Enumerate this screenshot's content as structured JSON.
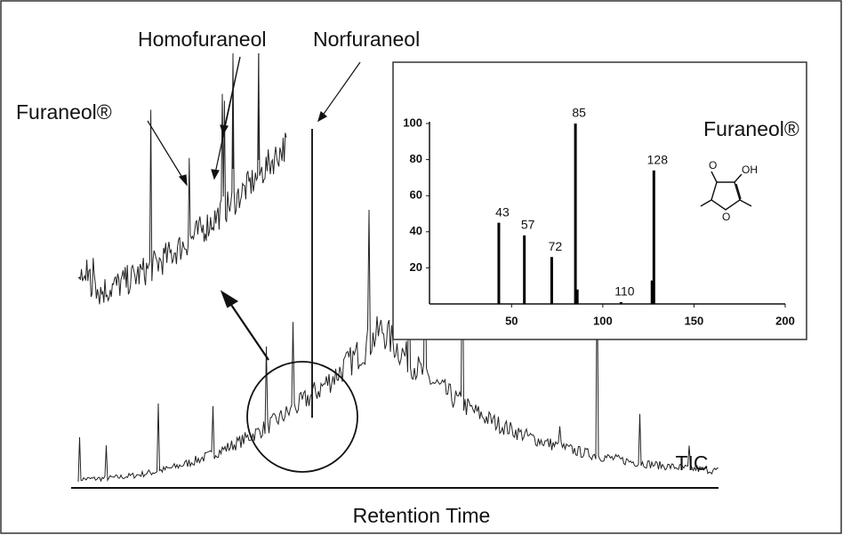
{
  "figure": {
    "labels": {
      "homofuraneol": "Homofuraneol",
      "norfuraneol": "Norfuraneol",
      "furaneol": "Furaneol®",
      "tic": "TIC",
      "x_axis": "Retention Time"
    },
    "structure_labels": [
      "O",
      "OH",
      "O"
    ]
  },
  "chart_data": {
    "type": "bar",
    "title": "Furaneol®",
    "color": "#000000",
    "x": [
      43,
      57,
      72,
      85,
      86,
      110,
      127,
      128
    ],
    "values": [
      45,
      38,
      26,
      100,
      8,
      1,
      13,
      74
    ],
    "xlim": [
      5,
      200
    ],
    "xticks": [
      50,
      100,
      150,
      200
    ],
    "ylim": [
      0,
      100
    ],
    "yticks": [
      20,
      40,
      60,
      80,
      100
    ]
  }
}
